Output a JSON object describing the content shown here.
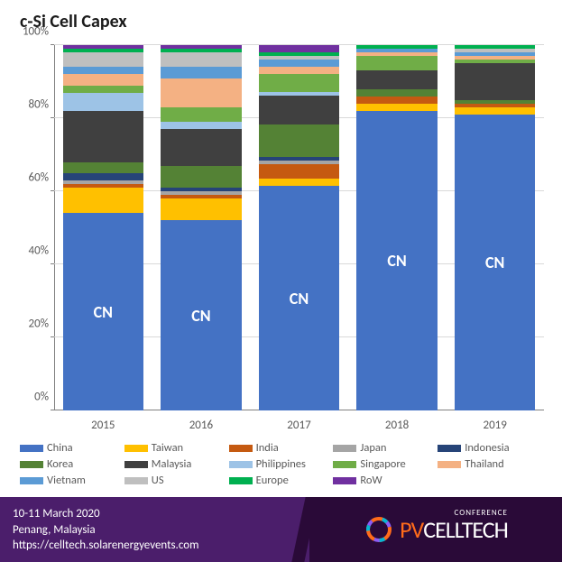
{
  "title": "c-Si Cell Capex",
  "chart": {
    "type": "stacked-bar",
    "ylim": [
      0,
      100
    ],
    "ytick_step": 20,
    "yticks": [
      "0%",
      "20%",
      "40%",
      "60%",
      "80%",
      "100%"
    ],
    "categories": [
      "2015",
      "2016",
      "2017",
      "2018",
      "2019"
    ],
    "grid_color": "#d9d9d9",
    "axis_color": "#808080",
    "background_color": "#ffffff",
    "cn_label": "CN",
    "cn_label_color": "#ffffff",
    "cn_label_fontsize": 18,
    "label_fontsize": 13,
    "series": [
      {
        "name": "China",
        "color": "#4472c4",
        "values": [
          54,
          52,
          62,
          82,
          81
        ]
      },
      {
        "name": "Taiwan",
        "color": "#ffc000",
        "values": [
          7,
          6,
          2,
          2,
          2
        ]
      },
      {
        "name": "India",
        "color": "#c55a11",
        "values": [
          1,
          1,
          4,
          2,
          1
        ]
      },
      {
        "name": "Japan",
        "color": "#a5a5a5",
        "values": [
          1,
          1,
          1,
          0,
          0
        ]
      },
      {
        "name": "Indonesia",
        "color": "#264478",
        "values": [
          2,
          1,
          1,
          0,
          0
        ]
      },
      {
        "name": "Korea",
        "color": "#548235",
        "values": [
          3,
          6,
          9,
          2,
          1
        ]
      },
      {
        "name": "Malaysia",
        "color": "#404040",
        "values": [
          14,
          10,
          8,
          5,
          10
        ]
      },
      {
        "name": "Philippines",
        "color": "#9dc3e6",
        "values": [
          5,
          2,
          1,
          0,
          0
        ]
      },
      {
        "name": "Singapore",
        "color": "#70ad47",
        "values": [
          2,
          4,
          5,
          4,
          1
        ]
      },
      {
        "name": "Thailand",
        "color": "#f4b183",
        "values": [
          3,
          8,
          2,
          1,
          1
        ]
      },
      {
        "name": "Vietnam",
        "color": "#5b9bd5",
        "values": [
          2,
          3,
          2,
          1,
          1
        ]
      },
      {
        "name": "US",
        "color": "#bfbfbf",
        "values": [
          4,
          4,
          1,
          0,
          1
        ]
      },
      {
        "name": "Europe",
        "color": "#00b050",
        "values": [
          1,
          1,
          1,
          1,
          1
        ]
      },
      {
        "name": "RoW",
        "color": "#7030a0",
        "values": [
          1,
          1,
          2,
          0,
          0
        ]
      }
    ]
  },
  "footer": {
    "date_line": "10-11 March 2020",
    "location_line": "Penang, Malaysia",
    "url_line": "https://celltech.solarenergyevents.com",
    "bg_left": "#4b1e6b",
    "bg_right": "#2a0a38",
    "text_color": "#ffffff",
    "logo": {
      "pv": "PV",
      "cell": "CELLTECH",
      "conf": "CONFERENCE",
      "pv_color": "#ff6b1a",
      "cell_color": "#ffffff"
    }
  }
}
